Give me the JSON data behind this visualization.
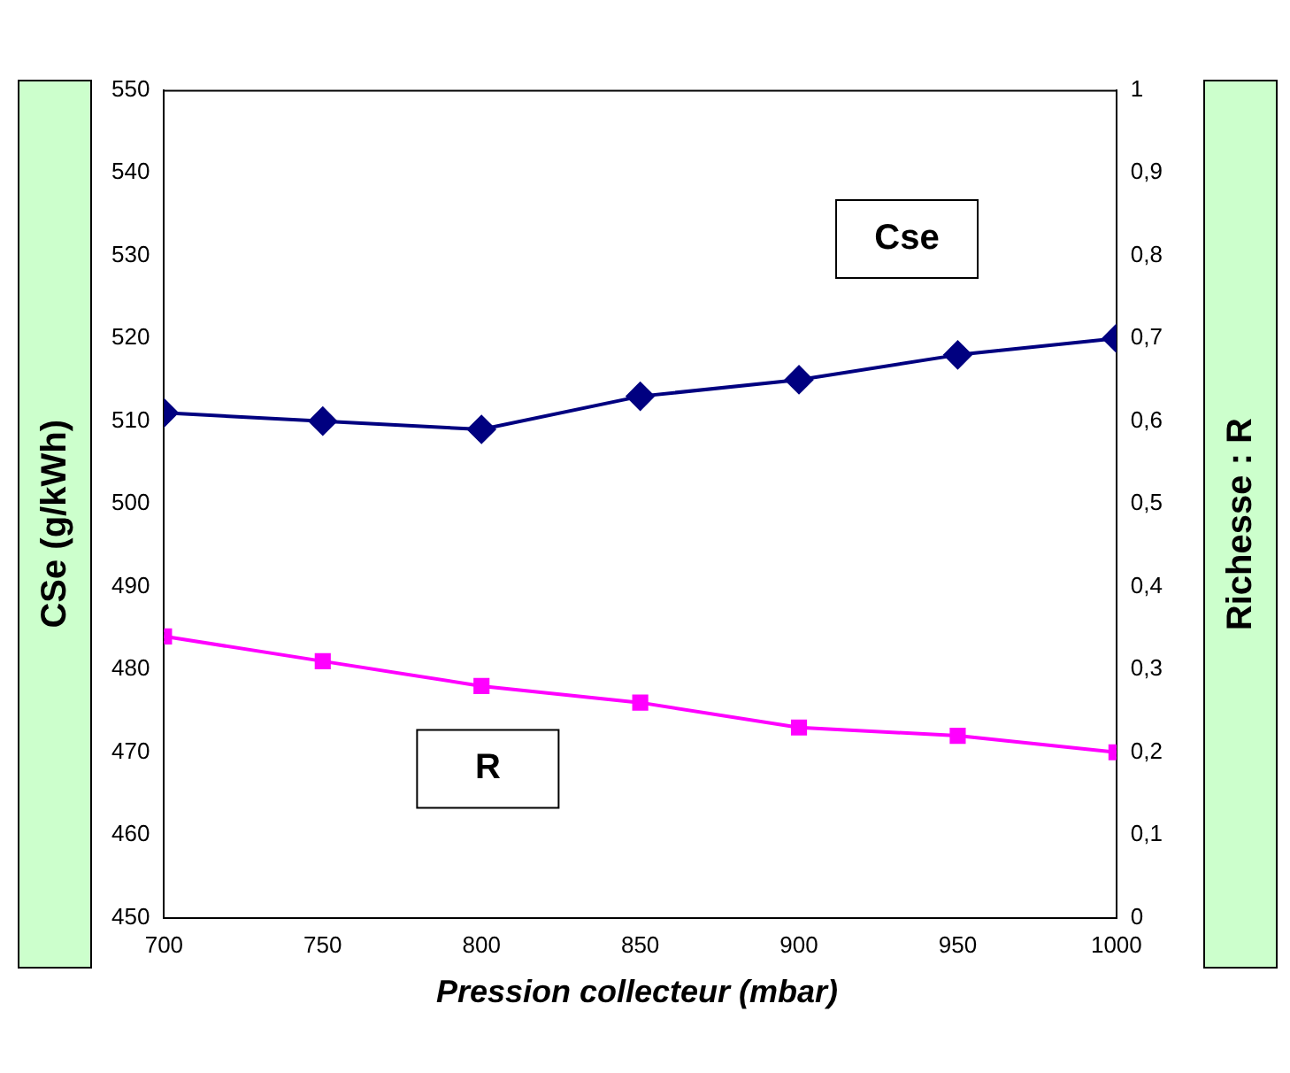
{
  "chart_data": {
    "type": "line",
    "xlabel": "Pression collecteur (mbar)",
    "ylabel": "CSe (g/kWh)",
    "y2label": "Richesse : R",
    "x": [
      700,
      750,
      800,
      850,
      900,
      950,
      1000
    ],
    "xlim": [
      700,
      1000
    ],
    "xticks": [
      700,
      750,
      800,
      850,
      900,
      950,
      1000
    ],
    "ylim": [
      450,
      550
    ],
    "yticks": [
      450,
      460,
      470,
      480,
      490,
      500,
      510,
      520,
      530,
      540,
      550
    ],
    "y2lim": [
      0,
      1
    ],
    "y2ticks": [
      0,
      {
        "value": 0.1,
        "label": "0,1"
      },
      {
        "value": 0.2,
        "label": "0,2"
      },
      {
        "value": 0.3,
        "label": "0,3"
      },
      {
        "value": 0.4,
        "label": "0,4"
      },
      {
        "value": 0.5,
        "label": "0,5"
      },
      {
        "value": 0.6,
        "label": "0,6"
      },
      {
        "value": 0.7,
        "label": "0,7"
      },
      {
        "value": 0.8,
        "label": "0,8"
      },
      {
        "value": 0.9,
        "label": "0,9"
      },
      1
    ],
    "grid": false,
    "legend": false,
    "line_style": "solid",
    "series": [
      {
        "name": "Cse",
        "color": "#000080",
        "marker": "diamond",
        "values": [
          511,
          510,
          509,
          513,
          515,
          518,
          520
        ]
      },
      {
        "name": "R",
        "color": "#ff00ff",
        "marker": "square",
        "axis": "y2",
        "values": [
          0.34,
          0.31,
          0.28,
          0.26,
          0.23,
          0.22,
          0.2
        ]
      }
    ]
  }
}
